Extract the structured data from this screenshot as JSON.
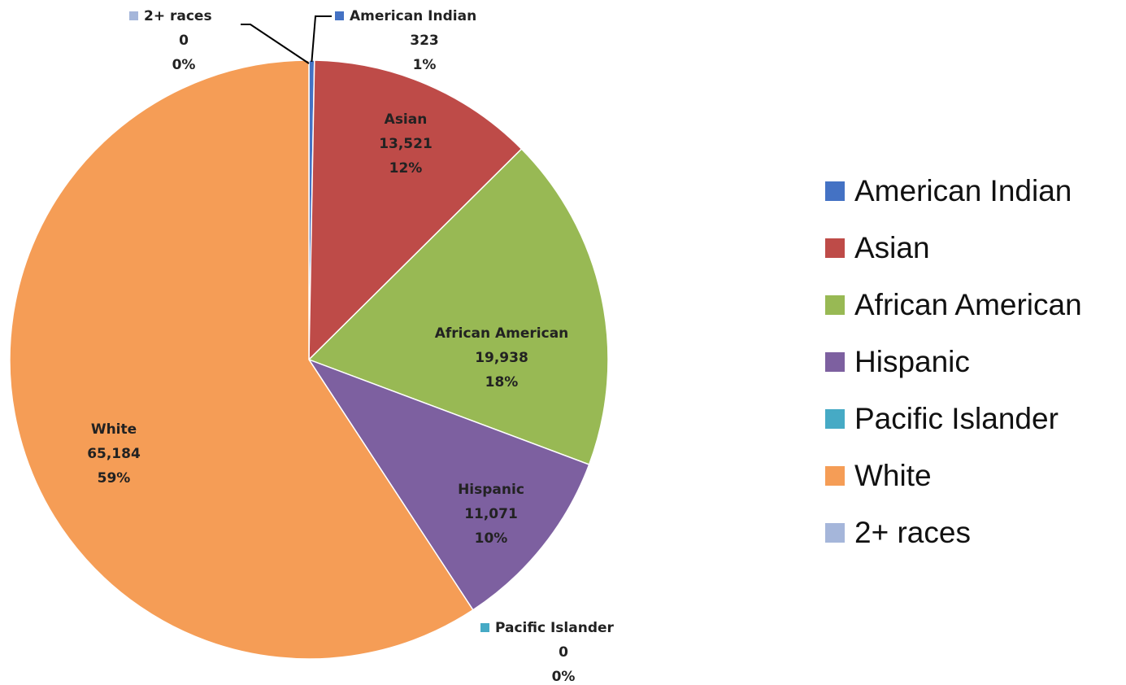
{
  "chart_data": {
    "type": "pie",
    "title": "",
    "legend_position": "right",
    "start_angle_deg": 0,
    "direction": "clockwise",
    "slices": [
      {
        "name": "American Indian",
        "value": 323,
        "value_label": "323",
        "percent_label": "1%",
        "color": "#4472C4"
      },
      {
        "name": "Asian",
        "value": 13521,
        "value_label": "13,521",
        "percent_label": "12%",
        "color": "#BE4B48"
      },
      {
        "name": "African American",
        "value": 19938,
        "value_label": "19,938",
        "percent_label": "18%",
        "color": "#98B954"
      },
      {
        "name": "Hispanic",
        "value": 11071,
        "value_label": "11,071",
        "percent_label": "10%",
        "color": "#7D60A0"
      },
      {
        "name": "Pacific Islander",
        "value": 0,
        "value_label": "0",
        "percent_label": "0%",
        "color": "#46AAC5"
      },
      {
        "name": "White",
        "value": 65184,
        "value_label": "65,184",
        "percent_label": "59%",
        "color": "#F59D56"
      },
      {
        "name": "2+ races",
        "value": 0,
        "value_label": "0",
        "percent_label": "0%",
        "color": "#A5B6DA"
      }
    ]
  },
  "legend": {
    "items": [
      {
        "label": "American Indian",
        "color": "#4472C4"
      },
      {
        "label": "Asian",
        "color": "#BE4B48"
      },
      {
        "label": "African American",
        "color": "#98B954"
      },
      {
        "label": "Hispanic",
        "color": "#7D60A0"
      },
      {
        "label": "Pacific Islander",
        "color": "#46AAC5"
      },
      {
        "label": "White",
        "color": "#F59D56"
      },
      {
        "label": "2+ races",
        "color": "#A5B6DA"
      }
    ]
  }
}
